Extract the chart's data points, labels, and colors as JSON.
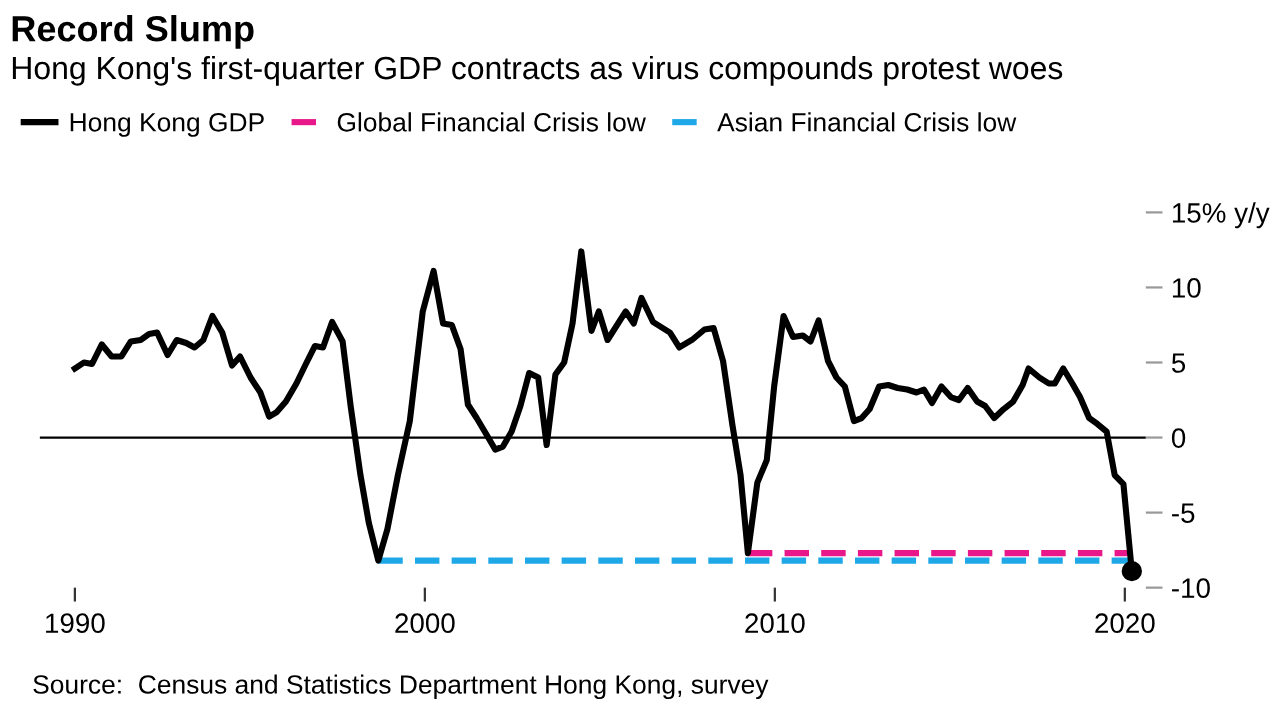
{
  "chart_data": {
    "type": "line",
    "title": "Record Slump",
    "subtitle": "Hong Kong's first-quarter GDP contracts as virus compounds protest woes",
    "x": [
      1990.0,
      1990.26,
      1990.49,
      1990.77,
      1991.05,
      1991.33,
      1991.6,
      1991.88,
      1992.12,
      1992.35,
      1992.65,
      1992.91,
      1993.18,
      1993.42,
      1993.67,
      1993.93,
      1994.21,
      1994.49,
      1994.72,
      1995.02,
      1995.3,
      1995.55,
      1995.77,
      1996.03,
      1996.33,
      1996.6,
      1996.86,
      1997.09,
      1997.35,
      1997.65,
      1997.88,
      1998.16,
      1998.4,
      1998.67,
      1998.93,
      1999.23,
      1999.57,
      1999.94,
      2000.25,
      2000.52,
      2000.77,
      2001.02,
      2001.23,
      2001.48,
      2001.76,
      2002.01,
      2002.23,
      2002.48,
      2002.73,
      2002.98,
      2003.24,
      2003.48,
      2003.73,
      2003.98,
      2004.22,
      2004.47,
      2004.76,
      2004.97,
      2005.22,
      2005.74,
      2005.97,
      2006.19,
      2006.52,
      2007.0,
      2007.27,
      2007.63,
      2007.99,
      2008.25,
      2008.52,
      2008.79,
      2009.02,
      2009.23,
      2009.5,
      2009.77,
      2009.98,
      2010.25,
      2010.52,
      2010.8,
      2011.02,
      2011.25,
      2011.52,
      2011.76,
      2012.0,
      2012.26,
      2012.48,
      2012.71,
      2012.98,
      2013.24,
      2013.51,
      2013.78,
      2014.05,
      2014.26,
      2014.49,
      2014.76,
      2015.03,
      2015.26,
      2015.51,
      2015.78,
      2016.01,
      2016.27,
      2016.54,
      2016.81,
      2017.08,
      2017.25,
      2017.56,
      2017.83,
      2018.0,
      2018.24,
      2018.5,
      2018.72,
      2018.98,
      2019.22,
      2019.48,
      2019.71,
      2019.96,
      2020.2
    ],
    "series": [
      {
        "name": "Hong Kong GDP",
        "color": "#000000",
        "line_style": "solid",
        "values": [
          4.6,
          5.0,
          4.9,
          6.2,
          5.4,
          5.4,
          6.4,
          6.5,
          6.9,
          7.0,
          5.5,
          6.5,
          6.3,
          6.0,
          6.5,
          8.1,
          7.0,
          4.8,
          5.4,
          4.0,
          3.0,
          1.4,
          1.7,
          2.4,
          3.6,
          4.9,
          6.1,
          6.0,
          7.7,
          6.4,
          2.1,
          -2.5,
          -5.7,
          -8.2,
          -6.1,
          -2.5,
          1.1,
          8.4,
          11.1,
          7.6,
          7.5,
          5.9,
          2.2,
          1.3,
          0.2,
          -0.8,
          -0.6,
          0.4,
          2.1,
          4.3,
          4.0,
          -0.5,
          4.2,
          5.0,
          7.6,
          12.4,
          7.1,
          8.4,
          6.5,
          8.4,
          7.6,
          9.3,
          7.7,
          7.0,
          6.0,
          6.5,
          7.2,
          7.3,
          5.1,
          0.8,
          -2.5,
          -7.7,
          -3.0,
          -1.5,
          3.4,
          8.1,
          6.7,
          6.8,
          6.4,
          7.8,
          5.1,
          4.0,
          3.4,
          1.1,
          1.3,
          1.9,
          3.4,
          3.5,
          3.3,
          3.2,
          3.0,
          3.2,
          2.3,
          3.4,
          2.7,
          2.5,
          3.3,
          2.4,
          2.1,
          1.3,
          1.9,
          2.4,
          3.5,
          4.6,
          4.0,
          3.6,
          3.6,
          4.6,
          3.6,
          2.7,
          1.3,
          0.9,
          0.4,
          -2.5,
          -3.1,
          -8.9
        ]
      },
      {
        "name": "Global Financial Crisis low",
        "color": "#e8178a",
        "line_style": "dashed",
        "x": [
          2009.23,
          2020.2
        ],
        "values": [
          -7.7,
          -7.7
        ]
      },
      {
        "name": "Asian Financial Crisis low",
        "color": "#1fa8e8",
        "line_style": "dashed",
        "x": [
          1998.67,
          2020.2
        ],
        "values": [
          -8.2,
          -8.2
        ]
      },
      {
        "color": "#000000",
        "type": "scatter",
        "marker": "circle",
        "x": [
          2020.2
        ],
        "values": [
          -8.9
        ]
      }
    ],
    "xlim": [
      1989.0,
      2020.6
    ],
    "xticks": [
      1990,
      2000,
      2010,
      2020
    ],
    "ylim": [
      -10,
      15
    ],
    "yticks": [
      {
        "value": 15,
        "label": "15% y/y"
      },
      10,
      5,
      0,
      -5,
      -10
    ],
    "ref_lines": [
      {
        "axis": "y",
        "value": 0,
        "color": "#000000"
      }
    ],
    "grid": false,
    "legend": "top left",
    "annotations": [
      "Source:  Census and Statistics Department Hong Kong, survey"
    ]
  }
}
